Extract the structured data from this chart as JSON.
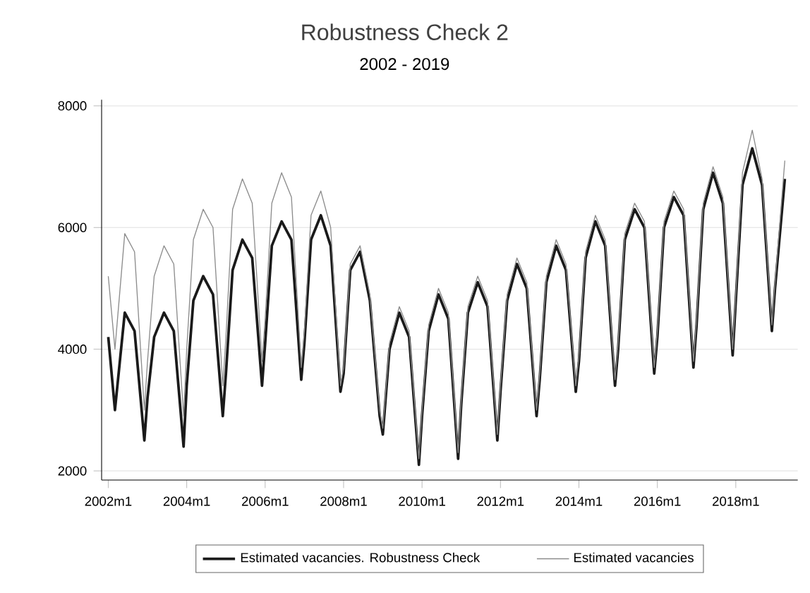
{
  "chart_data": {
    "type": "line",
    "title": "Robustness Check 2",
    "subtitle": "2002 - 2019",
    "x": [
      "2002-01",
      "2002-03",
      "2002-06",
      "2002-09",
      "2002-12",
      "2003-01",
      "2003-03",
      "2003-06",
      "2003-09",
      "2003-12",
      "2004-01",
      "2004-03",
      "2004-06",
      "2004-09",
      "2004-12",
      "2005-01",
      "2005-03",
      "2005-06",
      "2005-09",
      "2005-12",
      "2006-01",
      "2006-03",
      "2006-06",
      "2006-09",
      "2006-12",
      "2007-01",
      "2007-03",
      "2007-06",
      "2007-09",
      "2007-12",
      "2008-01",
      "2008-03",
      "2008-06",
      "2008-09",
      "2008-12",
      "2009-01",
      "2009-03",
      "2009-06",
      "2009-09",
      "2009-12",
      "2010-01",
      "2010-03",
      "2010-06",
      "2010-09",
      "2010-12",
      "2011-01",
      "2011-03",
      "2011-06",
      "2011-09",
      "2011-12",
      "2012-01",
      "2012-03",
      "2012-06",
      "2012-09",
      "2012-12",
      "2013-01",
      "2013-03",
      "2013-06",
      "2013-09",
      "2013-12",
      "2014-01",
      "2014-03",
      "2014-06",
      "2014-09",
      "2014-12",
      "2015-01",
      "2015-03",
      "2015-06",
      "2015-09",
      "2015-12",
      "2016-01",
      "2016-03",
      "2016-06",
      "2016-09",
      "2016-12",
      "2017-01",
      "2017-03",
      "2017-06",
      "2017-09",
      "2017-12",
      "2018-01",
      "2018-03",
      "2018-06",
      "2018-09",
      "2018-12",
      "2019-01",
      "2019-04"
    ],
    "series": [
      {
        "name": "Estimated vacancies. Robustness Check",
        "color": "#1a1a1a",
        "values": [
          4200,
          3000,
          4600,
          4300,
          2500,
          3200,
          4200,
          4600,
          4300,
          2400,
          3400,
          4800,
          5200,
          4900,
          2900,
          3600,
          5300,
          5800,
          5500,
          3400,
          4100,
          5700,
          6100,
          5800,
          3500,
          4100,
          5800,
          6200,
          5700,
          3300,
          3600,
          5300,
          5600,
          4800,
          2900,
          2600,
          4000,
          4600,
          4200,
          2100,
          2900,
          4300,
          4900,
          4500,
          2200,
          3100,
          4600,
          5100,
          4700,
          2500,
          3300,
          4800,
          5400,
          5000,
          2900,
          3500,
          5100,
          5700,
          5300,
          3300,
          3800,
          5500,
          6100,
          5700,
          3400,
          4000,
          5800,
          6300,
          6000,
          3600,
          4200,
          6000,
          6500,
          6200,
          3700,
          4400,
          6300,
          6900,
          6400,
          3900,
          4800,
          6700,
          7300,
          6700,
          4300,
          5000,
          6800
        ]
      },
      {
        "name": "Estimated vacancies",
        "color": "#8c8c8c",
        "values": [
          5200,
          4000,
          5900,
          5600,
          3000,
          3800,
          5200,
          5700,
          5400,
          2900,
          4000,
          5800,
          6300,
          6000,
          3400,
          4200,
          6300,
          6800,
          6400,
          3800,
          4500,
          6400,
          6900,
          6500,
          3700,
          4300,
          6200,
          6600,
          6000,
          3400,
          3700,
          5400,
          5700,
          4900,
          3000,
          2700,
          4100,
          4700,
          4300,
          2200,
          3000,
          4400,
          5000,
          4600,
          2300,
          3200,
          4700,
          5200,
          4800,
          2600,
          3400,
          4900,
          5500,
          5100,
          3000,
          3600,
          5200,
          5800,
          5400,
          3400,
          3900,
          5600,
          6200,
          5800,
          3500,
          4100,
          5900,
          6400,
          6100,
          3700,
          4300,
          6100,
          6600,
          6300,
          3800,
          4500,
          6400,
          7000,
          6500,
          4000,
          4900,
          6900,
          7600,
          6800,
          4400,
          5100,
          7100
        ]
      }
    ],
    "xlim": [
      "2001-11",
      "2019-08"
    ],
    "xticks": [
      {
        "value": "2002-01",
        "label": "2002m1"
      },
      {
        "value": "2004-01",
        "label": "2004m1"
      },
      {
        "value": "2006-01",
        "label": "2006m1"
      },
      {
        "value": "2008-01",
        "label": "2008m1"
      },
      {
        "value": "2010-01",
        "label": "2010m1"
      },
      {
        "value": "2012-01",
        "label": "2012m1"
      },
      {
        "value": "2014-01",
        "label": "2014m1"
      },
      {
        "value": "2016-01",
        "label": "2016m1"
      },
      {
        "value": "2018-01",
        "label": "2018m1"
      }
    ],
    "ylim": [
      1850,
      8100
    ],
    "yticks": [
      2000,
      4000,
      6000,
      8000
    ],
    "grid": "y",
    "legend": "bottom",
    "marker": "none",
    "line_style": "solid"
  }
}
